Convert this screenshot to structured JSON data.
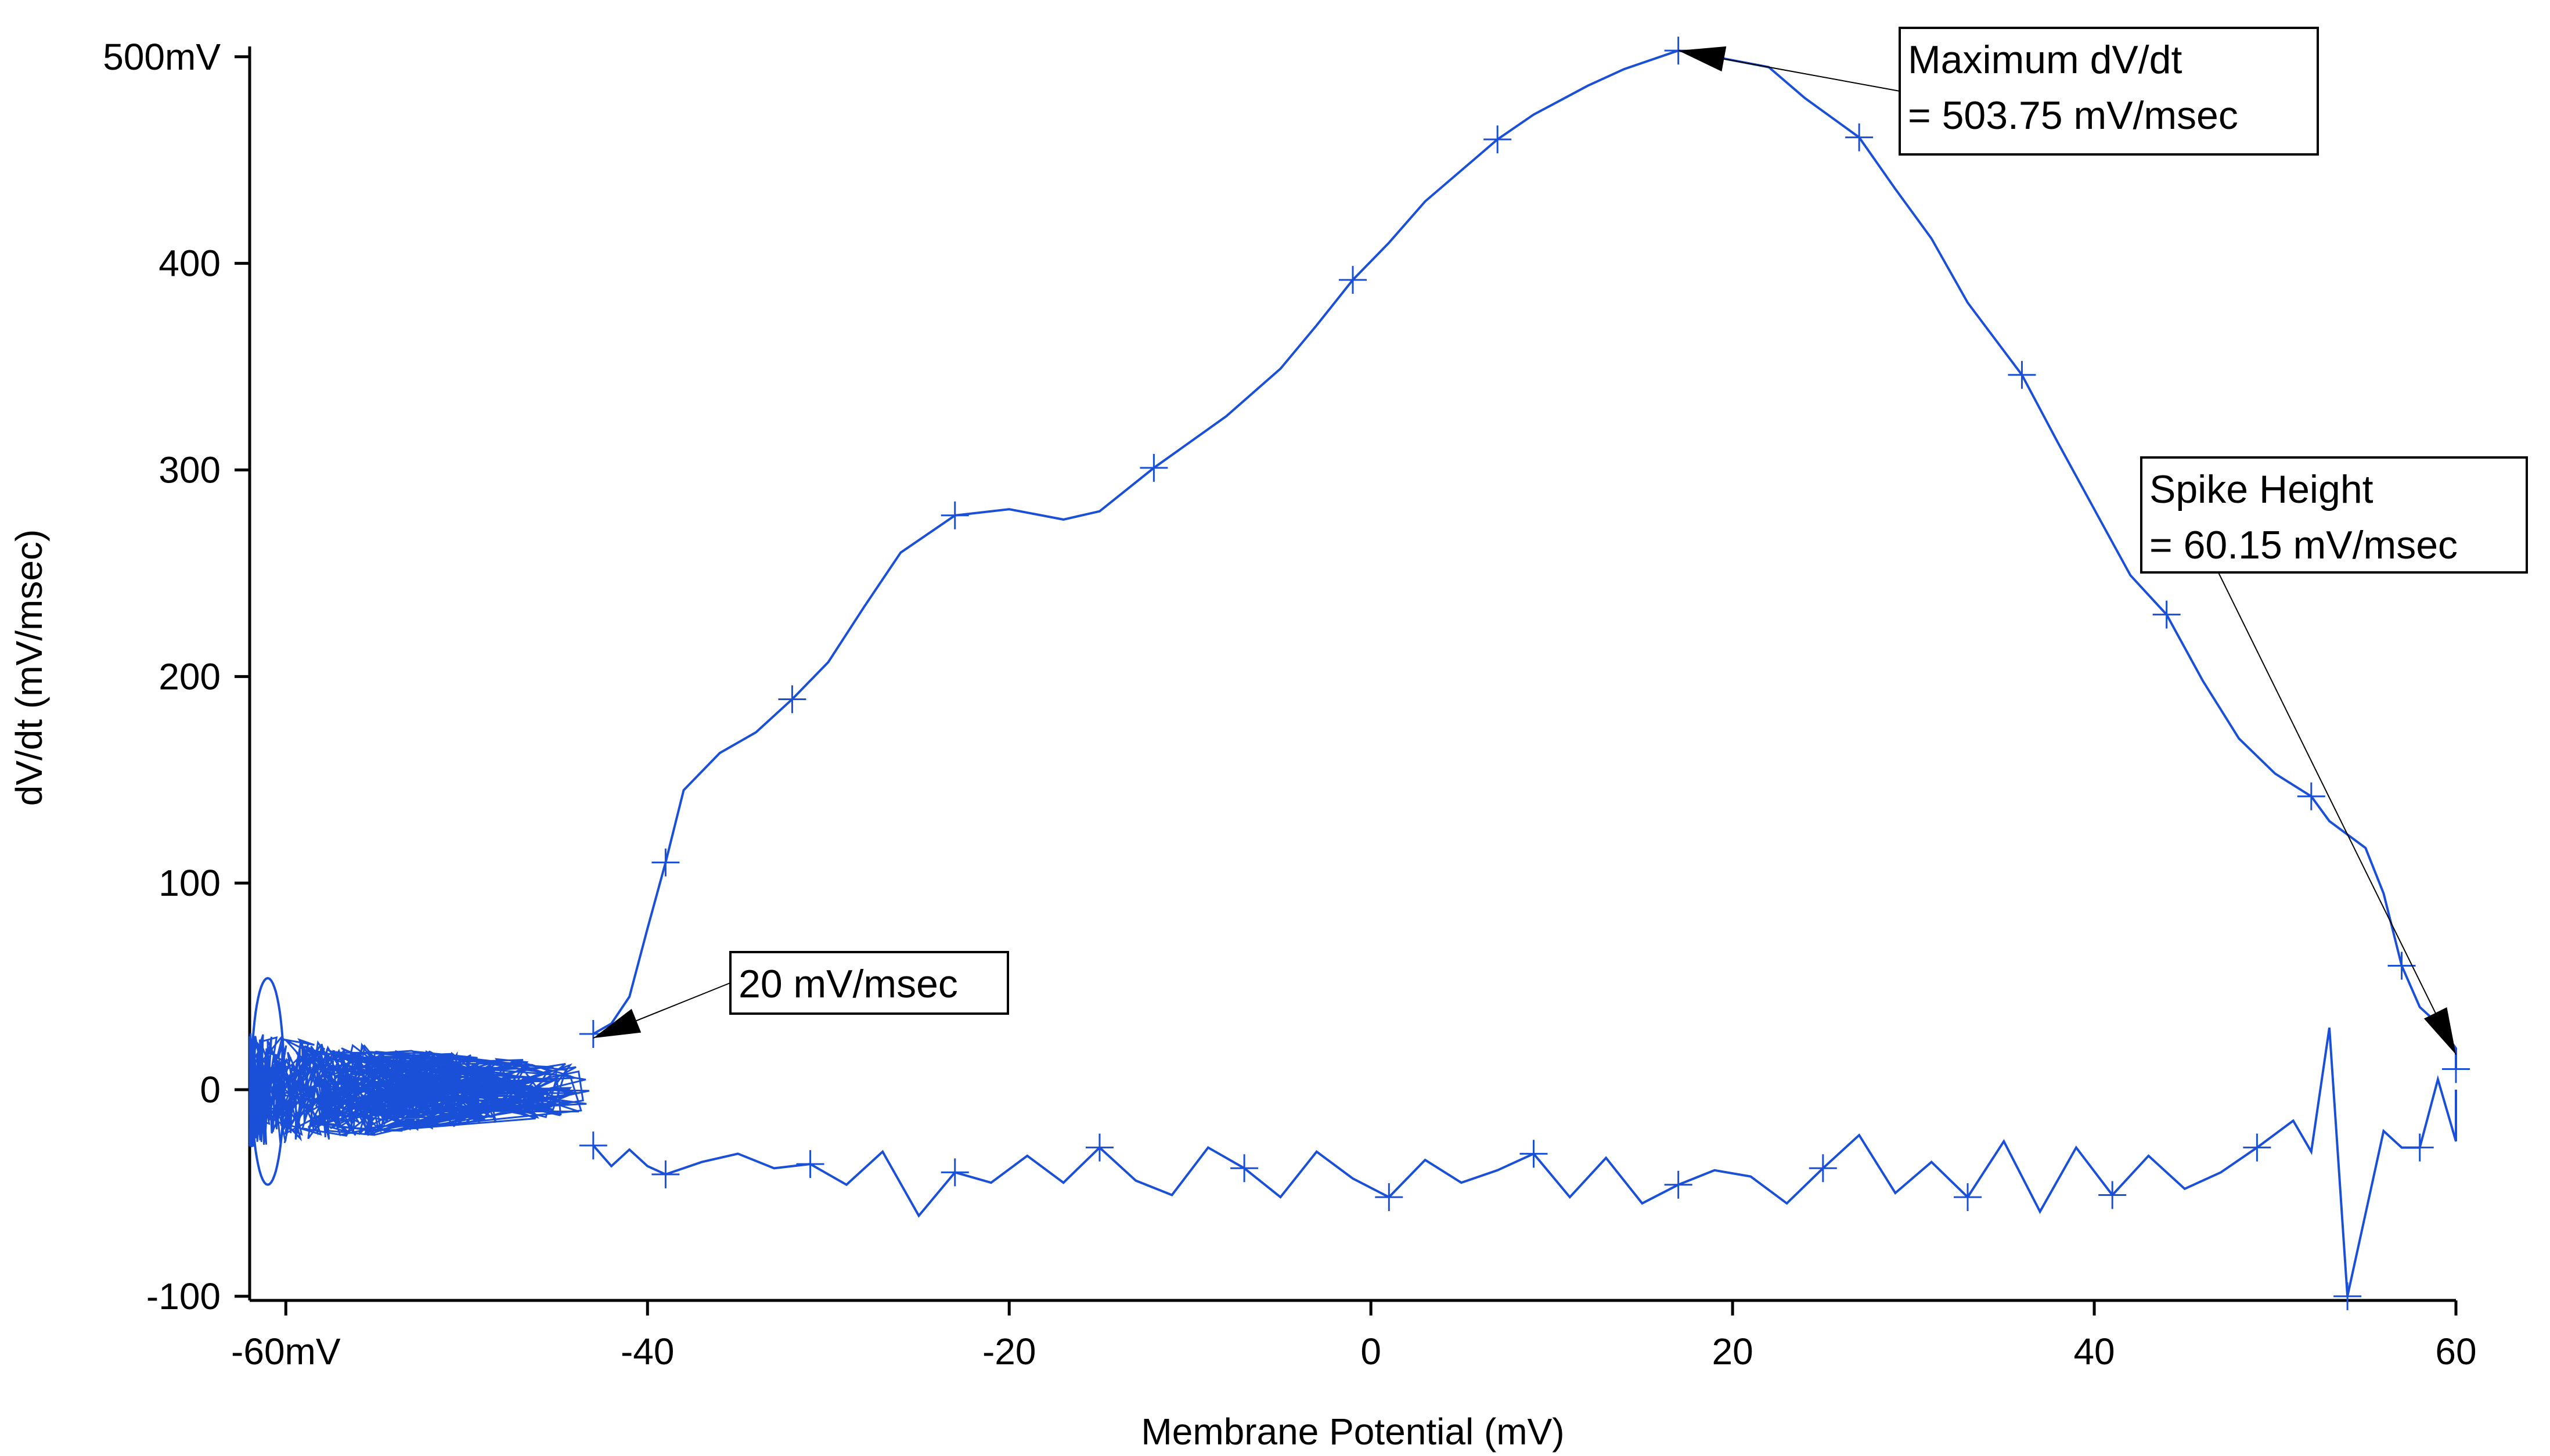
{
  "chart_data": {
    "type": "line",
    "title": "",
    "xlabel": "Membrane Potential (mV)",
    "ylabel": "dV/dt (mV/msec)",
    "xlim": [
      -62,
      60
    ],
    "ylim": [
      -102,
      505
    ],
    "grid": false,
    "legend": "none",
    "x_ticks": [
      {
        "value": -60,
        "label": "-60mV"
      },
      {
        "value": -40,
        "label": "-40"
      },
      {
        "value": -20,
        "label": "-20"
      },
      {
        "value": 0,
        "label": "0"
      },
      {
        "value": 20,
        "label": "20"
      },
      {
        "value": 40,
        "label": "40"
      },
      {
        "value": 60,
        "label": "60"
      }
    ],
    "y_ticks": [
      {
        "value": -100,
        "label": "-100"
      },
      {
        "value": 0,
        "label": "0"
      },
      {
        "value": 100,
        "label": "100"
      },
      {
        "value": 200,
        "label": "200"
      },
      {
        "value": 300,
        "label": "300"
      },
      {
        "value": 400,
        "label": "400"
      },
      {
        "value": 500,
        "label": "500mV"
      }
    ],
    "series": [
      {
        "color": "#1a4fd8",
        "upstroke": [
          [
            -43,
            27
          ],
          [
            -42,
            32
          ],
          [
            -41,
            45
          ],
          [
            -40,
            78
          ],
          [
            -39,
            110
          ],
          [
            -38,
            145
          ],
          [
            -36,
            163
          ],
          [
            -34,
            173
          ],
          [
            -32,
            189
          ],
          [
            -30,
            207
          ],
          [
            -28,
            234
          ],
          [
            -26,
            260
          ],
          [
            -23,
            278
          ],
          [
            -20,
            281
          ],
          [
            -17,
            276
          ],
          [
            -15,
            280
          ],
          [
            -12,
            301
          ],
          [
            -8,
            326
          ],
          [
            -5,
            349
          ],
          [
            -3,
            370
          ],
          [
            -1,
            392
          ],
          [
            1,
            410
          ],
          [
            3,
            430
          ],
          [
            5,
            445
          ],
          [
            7,
            460
          ],
          [
            9,
            472
          ],
          [
            12,
            486
          ],
          [
            14,
            494
          ],
          [
            17,
            503
          ],
          [
            19,
            500
          ],
          [
            22,
            495
          ],
          [
            24,
            480
          ],
          [
            27,
            461
          ],
          [
            29,
            436
          ],
          [
            31,
            412
          ],
          [
            33,
            381
          ],
          [
            36,
            346
          ],
          [
            38,
            313
          ],
          [
            40,
            281
          ],
          [
            42,
            249
          ],
          [
            44,
            230
          ],
          [
            46,
            198
          ],
          [
            48,
            170
          ],
          [
            50,
            153
          ],
          [
            52,
            142
          ],
          [
            53,
            130
          ],
          [
            55,
            117
          ],
          [
            56,
            95
          ],
          [
            57,
            60
          ],
          [
            58,
            40
          ],
          [
            59,
            32
          ],
          [
            60,
            20
          ],
          [
            60,
            10
          ]
        ],
        "downstroke": [
          [
            -43,
            -27
          ],
          [
            -42,
            -37
          ],
          [
            -41,
            -29
          ],
          [
            -40,
            -37
          ],
          [
            -39,
            -41
          ],
          [
            -37,
            -35
          ],
          [
            -35,
            -31
          ],
          [
            -33,
            -38
          ],
          [
            -31,
            -36
          ],
          [
            -29,
            -46
          ],
          [
            -27,
            -30
          ],
          [
            -25,
            -61
          ],
          [
            -23,
            -40
          ],
          [
            -21,
            -45
          ],
          [
            -19,
            -32
          ],
          [
            -17,
            -45
          ],
          [
            -15,
            -28
          ],
          [
            -13,
            -44
          ],
          [
            -11,
            -51
          ],
          [
            -9,
            -28
          ],
          [
            -7,
            -38
          ],
          [
            -5,
            -52
          ],
          [
            -3,
            -30
          ],
          [
            -1,
            -43
          ],
          [
            1,
            -52
          ],
          [
            3,
            -34
          ],
          [
            5,
            -45
          ],
          [
            7,
            -39
          ],
          [
            9,
            -31
          ],
          [
            11,
            -52
          ],
          [
            13,
            -33
          ],
          [
            15,
            -55
          ],
          [
            17,
            -46
          ],
          [
            19,
            -39
          ],
          [
            21,
            -42
          ],
          [
            23,
            -55
          ],
          [
            25,
            -38
          ],
          [
            27,
            -22
          ],
          [
            29,
            -50
          ],
          [
            31,
            -35
          ],
          [
            33,
            -52
          ],
          [
            35,
            -25
          ],
          [
            37,
            -59
          ],
          [
            39,
            -28
          ],
          [
            41,
            -51
          ],
          [
            43,
            -32
          ],
          [
            45,
            -48
          ],
          [
            47,
            -40
          ],
          [
            49,
            -28
          ],
          [
            51,
            -15
          ],
          [
            52,
            -30
          ],
          [
            53,
            30
          ],
          [
            54,
            -100
          ],
          [
            55,
            -60
          ],
          [
            56,
            -20
          ],
          [
            57,
            -28
          ],
          [
            58,
            -28
          ],
          [
            59,
            5
          ],
          [
            60,
            -25
          ],
          [
            60,
            0
          ]
        ],
        "noise_range": {
          "x": [
            -62,
            -43
          ],
          "y": [
            -48,
            55
          ]
        }
      }
    ],
    "annotations": [
      {
        "lines": [
          "Maximum dV/dt",
          "= 503.75 mV/msec"
        ],
        "target_x": 17,
        "target_y": 503
      },
      {
        "lines": [
          "Spike Height",
          "= 60.15 mV/msec"
        ],
        "target_x": 60,
        "target_y": 17
      },
      {
        "lines": [
          "20 mV/msec"
        ],
        "target_x": -43,
        "target_y": 25
      }
    ]
  }
}
